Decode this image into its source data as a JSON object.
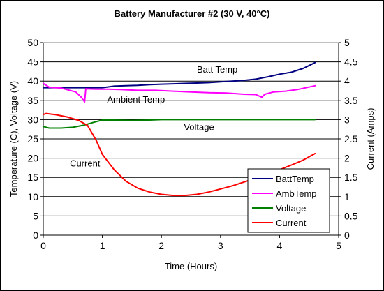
{
  "chart_data": {
    "type": "line",
    "title": "Battery Manufacturer #2 (30 V, 40°C)",
    "xlabel": "Time (Hours)",
    "ylabel": "Temperature (C), Voltage (V)",
    "y2label": "Current (Amps)",
    "xlim": [
      0,
      5
    ],
    "ylim": [
      0,
      50
    ],
    "y2lim": [
      0,
      5
    ],
    "x_ticks": [
      "0",
      "1",
      "2",
      "3",
      "4",
      "5"
    ],
    "y_ticks": [
      "0",
      "5",
      "10",
      "15",
      "20",
      "25",
      "30",
      "35",
      "40",
      "45",
      "50"
    ],
    "y2_ticks": [
      "0",
      "0.5",
      "1",
      "1.5",
      "2",
      "2.5",
      "3",
      "3.5",
      "4",
      "4.5",
      "5"
    ],
    "grid": "horizontal",
    "legend_position": "bottom-right",
    "annotations": [
      {
        "text": "Batt Temp",
        "x": 2.6,
        "y": 42.2
      },
      {
        "text": "Ambient Temp",
        "x": 1.08,
        "y": 34.4
      },
      {
        "text": "Voltage",
        "x": 2.38,
        "y": 27.3
      },
      {
        "text": "Current",
        "x": 0.45,
        "y": 17.8
      }
    ],
    "series": [
      {
        "name": "BattTemp",
        "axis": "left",
        "color": "#000080",
        "x": [
          0,
          0.2,
          0.4,
          0.6,
          0.8,
          1.0,
          1.2,
          1.4,
          1.6,
          1.8,
          2.0,
          2.2,
          2.4,
          2.6,
          2.8,
          3.0,
          3.2,
          3.4,
          3.6,
          3.8,
          4.0,
          4.2,
          4.4,
          4.6
        ],
        "y": [
          38.3,
          38.3,
          38.3,
          38.3,
          38.3,
          38.3,
          38.7,
          38.8,
          38.9,
          39.1,
          39.2,
          39.3,
          39.4,
          39.5,
          39.6,
          39.8,
          40.0,
          40.2,
          40.5,
          41.1,
          41.8,
          42.3,
          43.3,
          44.8
        ]
      },
      {
        "name": "AmbTemp",
        "axis": "left",
        "color": "#ff00ff",
        "x": [
          0,
          0.1,
          0.3,
          0.55,
          0.65,
          0.7,
          0.72,
          0.9,
          1.1,
          1.3,
          1.6,
          1.9,
          2.2,
          2.5,
          2.8,
          3.1,
          3.4,
          3.6,
          3.7,
          3.75,
          3.9,
          4.1,
          4.3,
          4.6
        ],
        "y": [
          39.4,
          38.4,
          38.2,
          37.2,
          35.7,
          34.6,
          38.0,
          37.9,
          37.9,
          37.8,
          37.6,
          37.6,
          37.4,
          37.2,
          37.0,
          36.9,
          36.6,
          36.5,
          35.8,
          36.6,
          37.2,
          37.4,
          37.8,
          38.8
        ]
      },
      {
        "name": "Voltage",
        "axis": "left",
        "color": "#008000",
        "x": [
          0,
          0.1,
          0.3,
          0.5,
          0.7,
          0.85,
          1.0,
          1.2,
          1.5,
          1.8,
          2.0,
          2.5,
          3.0,
          3.5,
          4.0,
          4.6
        ],
        "y": [
          28.2,
          27.8,
          27.8,
          28.0,
          28.6,
          29.3,
          29.9,
          29.9,
          29.8,
          29.9,
          30.0,
          30.0,
          30.0,
          30.0,
          30.0,
          30.0
        ]
      },
      {
        "name": "Current",
        "axis": "right",
        "color": "#ff0000",
        "x": [
          0,
          0.05,
          0.2,
          0.4,
          0.6,
          0.75,
          0.9,
          1.0,
          1.2,
          1.4,
          1.6,
          1.8,
          2.0,
          2.2,
          2.4,
          2.6,
          2.8,
          3.0,
          3.2,
          3.4,
          3.6,
          3.8,
          4.0,
          4.2,
          4.4,
          4.6
        ],
        "y": [
          3.13,
          3.16,
          3.13,
          3.07,
          2.98,
          2.85,
          2.45,
          2.1,
          1.7,
          1.4,
          1.22,
          1.12,
          1.06,
          1.03,
          1.03,
          1.06,
          1.12,
          1.2,
          1.28,
          1.38,
          1.48,
          1.58,
          1.7,
          1.82,
          1.95,
          2.12
        ]
      }
    ]
  }
}
